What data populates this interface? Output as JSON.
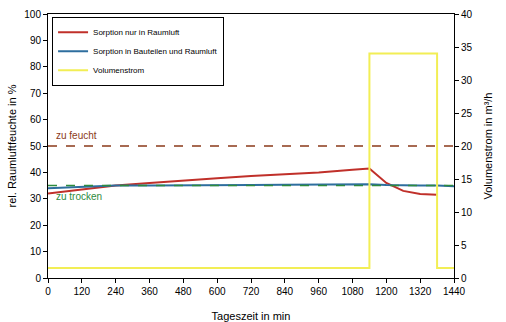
{
  "chart_data": {
    "type": "line",
    "xlabel": "Tageszeit in min",
    "ylabel": "rel. Raumluftfeuchte in %",
    "y2label": "Volumenstrom in m³/h",
    "x": [
      0,
      120,
      240,
      360,
      480,
      600,
      720,
      840,
      960,
      1080,
      1140,
      1140,
      1200,
      1260,
      1320,
      1380,
      1380,
      1440
    ],
    "series": [
      {
        "name": "Sorption nur in Raumluft",
        "color": "#c0302a",
        "line_style": "solid",
        "values": [
          32,
          33.5,
          35,
          36,
          37,
          37.8,
          38.6,
          39.3,
          40,
          41,
          41.5,
          41.5,
          36,
          33,
          31.8,
          31.5,
          31.5,
          null
        ]
      },
      {
        "name": "Sorption in Bauteilen und Raumluft",
        "color": "#2e6e9e",
        "line_style": "solid",
        "values": [
          34,
          34.5,
          35,
          35,
          35,
          35.2,
          35.2,
          35.3,
          35.4,
          35.5,
          35.5,
          35.5,
          35.2,
          35,
          35,
          35,
          35,
          34.8
        ]
      },
      {
        "name": "Volumenstrom",
        "color": "#f2ee55",
        "line_style": "solid",
        "axis": "y2",
        "values": [
          1.5,
          1.5,
          1.5,
          1.5,
          1.5,
          1.5,
          1.5,
          1.5,
          1.5,
          1.5,
          1.5,
          34,
          34,
          34,
          34,
          34,
          1.5,
          1.5
        ]
      },
      {
        "name": "zu feucht",
        "color": "#8b3a1a",
        "line_style": "dashed",
        "values": [
          50,
          50,
          50,
          50,
          50,
          50,
          50,
          50,
          50,
          50,
          50,
          50,
          50,
          50,
          50,
          50,
          50,
          50
        ]
      },
      {
        "name": "zu trocken",
        "color": "#2e8b3e",
        "line_style": "dashed",
        "values": [
          35,
          35,
          35,
          35,
          35,
          35,
          35,
          35,
          35,
          35,
          35,
          35,
          35,
          35,
          35,
          35,
          35,
          35
        ]
      }
    ],
    "annotations": [
      {
        "text": "zu feucht",
        "x": 20,
        "y": 54,
        "color": "#8b3a1a"
      },
      {
        "text": "zu trocken",
        "x": 20,
        "y": 31,
        "color": "#2e8b3e"
      }
    ],
    "xlim": [
      0,
      1440
    ],
    "xticks": [
      0,
      120,
      240,
      360,
      480,
      600,
      720,
      840,
      960,
      1080,
      1200,
      1320,
      1440
    ],
    "ylim": [
      0,
      100
    ],
    "yticks": [
      0,
      10,
      20,
      30,
      40,
      50,
      60,
      70,
      80,
      90,
      100
    ],
    "y2lim": [
      0,
      40
    ],
    "y2ticks": [
      0,
      5,
      10,
      15,
      20,
      25,
      30,
      35,
      40
    ],
    "legend": "top-left",
    "grid": false
  }
}
